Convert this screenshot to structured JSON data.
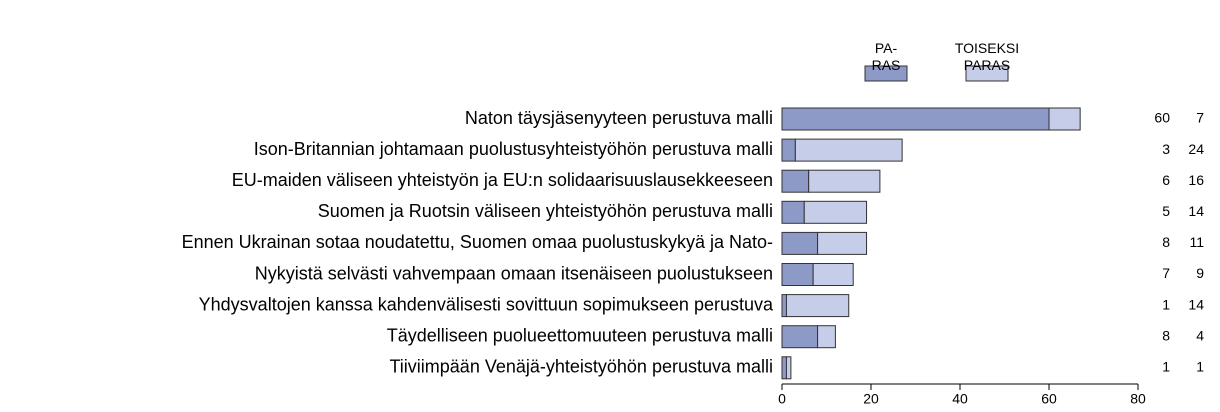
{
  "chart_data": {
    "type": "stacked_barh",
    "categories": [
      "Naton täysjäsenyyteen perustuva malli",
      "Ison-Britannian johtamaan puolustusyhteistyöhön perustuva malli",
      "EU-maiden väliseen yhteistyön ja EU:n solidaarisuuslausekkeeseen",
      "Suomen ja Ruotsin väliseen yhteistyöhön perustuva malli",
      "Ennen Ukrainan sotaa noudatettu, Suomen omaa puolustuskykyä ja Nato-",
      "Nykyistä selvästi vahvempaan omaan itsenäiseen puolustukseen",
      "Yhdysvaltojen kanssa kahdenvälisesti sovittuun sopimukseen perustuva",
      "Täydelliseen puolueettomuuteen perustuva malli",
      "Tiiviimpään Venäjä-yhteistyöhön perustuva malli"
    ],
    "series": [
      {
        "name": "PA-\nRAS",
        "color": "#8d9ac8",
        "values": [
          60,
          3,
          6,
          5,
          8,
          7,
          1,
          8,
          1
        ]
      },
      {
        "name": "TOISEKSI\nPARAS",
        "color": "#c6cde9",
        "values": [
          7,
          24,
          16,
          14,
          11,
          9,
          14,
          4,
          1
        ]
      }
    ],
    "xlim": [
      0,
      80
    ],
    "xticks": [
      0,
      20,
      40,
      60,
      80
    ]
  }
}
